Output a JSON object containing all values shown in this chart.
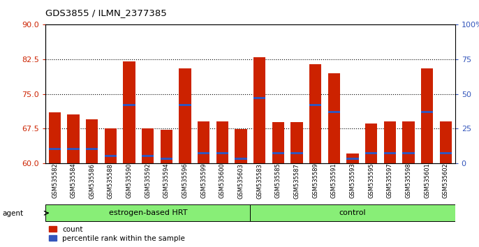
{
  "title": "GDS3855 / ILMN_2377385",
  "samples": [
    "GSM535582",
    "GSM535584",
    "GSM535586",
    "GSM535588",
    "GSM535590",
    "GSM535592",
    "GSM535594",
    "GSM535596",
    "GSM535599",
    "GSM535600",
    "GSM535603",
    "GSM535583",
    "GSM535585",
    "GSM535587",
    "GSM535589",
    "GSM535591",
    "GSM535593",
    "GSM535595",
    "GSM535597",
    "GSM535598",
    "GSM535601",
    "GSM535602"
  ],
  "groups": [
    "estrogen-based HRT",
    "estrogen-based HRT",
    "estrogen-based HRT",
    "estrogen-based HRT",
    "estrogen-based HRT",
    "estrogen-based HRT",
    "estrogen-based HRT",
    "estrogen-based HRT",
    "estrogen-based HRT",
    "estrogen-based HRT",
    "estrogen-based HRT",
    "control",
    "control",
    "control",
    "control",
    "control",
    "control",
    "control",
    "control",
    "control",
    "control",
    "control"
  ],
  "red_heights": [
    71.0,
    70.5,
    69.5,
    67.5,
    82.0,
    67.5,
    67.2,
    80.5,
    69.0,
    69.0,
    67.3,
    83.0,
    68.8,
    68.8,
    81.5,
    79.5,
    62.0,
    68.5,
    69.0,
    69.0,
    80.5,
    69.0
  ],
  "blue_pct": [
    10,
    10,
    10,
    5,
    42,
    5,
    3,
    42,
    7,
    7,
    3,
    47,
    7,
    7,
    42,
    37,
    3,
    7,
    7,
    7,
    37,
    7
  ],
  "ylim_left": [
    60,
    90
  ],
  "ylim_right": [
    0,
    100
  ],
  "yticks_left": [
    60,
    67.5,
    75,
    82.5,
    90
  ],
  "yticks_right": [
    0,
    25,
    50,
    75,
    100
  ],
  "hlines": [
    67.5,
    75,
    82.5
  ],
  "bar_color": "#cc2200",
  "blue_color": "#3355bb",
  "grp_color": "#88ee77",
  "agent_label": "agent",
  "legend_count": "count",
  "legend_pct": "percentile rank within the sample"
}
